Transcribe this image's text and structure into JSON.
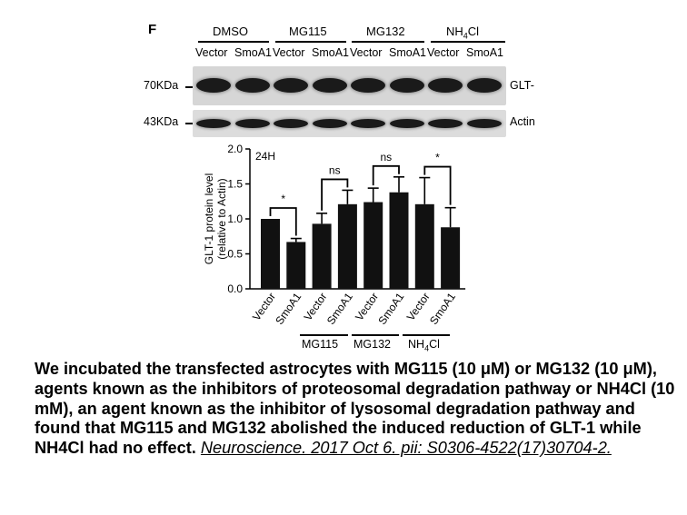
{
  "panel": {
    "letter": "F"
  },
  "conditions": [
    "DMSO",
    "MG115",
    "MG132",
    "NH",
    "4",
    "Cl"
  ],
  "blot": {
    "lanes": [
      "Vector",
      "SmoA1",
      "Vector",
      "SmoA1",
      "Vector",
      "SmoA1",
      "Vector",
      "SmoA1"
    ],
    "rows": [
      {
        "marker": "70KDa",
        "protein": "GLT-"
      },
      {
        "marker": "43KDa",
        "protein": "Actin"
      }
    ]
  },
  "chart_data": {
    "type": "bar",
    "annotation": "24H",
    "ylabel": "GLT-1 protein level",
    "ylabel2": "(relative to Actin)",
    "ylim": [
      0,
      2.0
    ],
    "yticks": [
      "0.0",
      "0.5",
      "1.0",
      "1.5",
      "2.0"
    ],
    "categories": [
      "Vector",
      "SmoA1",
      "Vector",
      "SmoA1",
      "Vector",
      "SmoA1",
      "Vector",
      "SmoA1"
    ],
    "values": [
      1.0,
      0.67,
      0.93,
      1.21,
      1.24,
      1.38,
      1.21,
      0.88
    ],
    "errors": [
      0.0,
      0.05,
      0.15,
      0.2,
      0.2,
      0.22,
      0.38,
      0.28
    ],
    "groups": [
      "MG115",
      "MG132",
      "NH",
      "4",
      "Cl"
    ],
    "significance": [
      "*",
      "ns",
      "ns",
      "*"
    ]
  },
  "caption": {
    "text": "We incubated the transfected astrocytes with MG115 (10 μM) or MG132 (10 μM), agents known as the inhibitors of proteosomal degradation pathway or NH4Cl (10 mM), an agent known as the inhibitor of lysosomal degradation pathway and found that MG115 and MG132 abolished the induced reduction of GLT-1 while NH4Cl had no effect.",
    "reference": "Neuroscience. 2017 Oct 6. pii: S0306-4522(17)30704-2."
  },
  "colors": {
    "bar": "#111111",
    "blot_bg": "#d9d9d9",
    "band": "#1a1a1a"
  }
}
